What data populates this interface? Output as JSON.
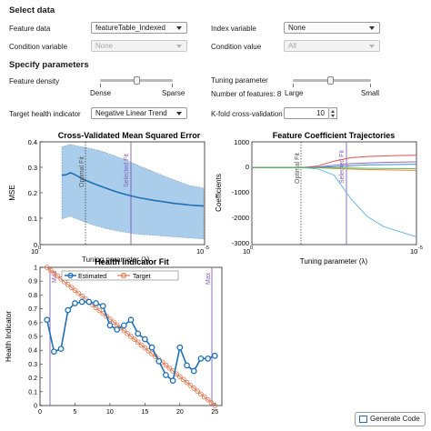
{
  "select_data": {
    "header": "Select data",
    "feature_data_label": "Feature data",
    "feature_data_value": "featureTable_Indexed",
    "index_variable_label": "Index variable",
    "index_variable_value": "None",
    "condition_variable_label": "Condition variable",
    "condition_variable_value": "None",
    "condition_value_label": "Condition value",
    "condition_value_value": "All"
  },
  "params": {
    "header": "Specify parameters",
    "feature_density_label": "Feature density",
    "density_left": "Dense",
    "density_right": "Sparse",
    "tuning_label": "Tuning parameter",
    "num_features_label": "Number of features: 8",
    "tuning_left": "Large",
    "tuning_right": "Small",
    "target_label": "Target health indicator",
    "target_value": "Negative Linear Trend",
    "kfold_label": "K-fold cross-validation",
    "kfold_value": "10"
  },
  "charts": {
    "mse": {
      "title": "Cross-Validated Mean Squared Error",
      "ylabel": "MSE",
      "optimal": "Optimal Fit",
      "selected": "Selected Fit",
      "xticks": [
        "10",
        "-5"
      ],
      "x0": "10",
      "x1": "10",
      "yticks": [
        "0.4",
        "0.3",
        "0.2",
        "0.1",
        "0"
      ]
    },
    "coef": {
      "title": "Feature Coefficient Trajectories",
      "ylabel": "Coefficients",
      "xlabel": "Tuning  parameter  (λ)",
      "optimal": "Optimal Fit",
      "selected": "Selected Fit",
      "yticks": [
        "1000",
        "0",
        "-1000",
        "-2000",
        "-3000"
      ],
      "x0": "10",
      "x1": "10",
      "x1exp": "-5"
    },
    "overlap_label": "Tuning  parameter  (λ)",
    "hi": {
      "title": "Health Indicator Fit",
      "ylabel": "Health Indicator",
      "legend_estimated": "Estimated",
      "legend_target": "Target",
      "max_left": "Max",
      "max_right": "Max",
      "yticks": [
        "1",
        "0.9",
        "0.8",
        "0.7",
        "0.6",
        "0.5",
        "0.4",
        "0.3",
        "0.2",
        "0.1",
        "0"
      ],
      "xticks": [
        "0",
        "5",
        "10",
        "15",
        "20",
        "25"
      ]
    }
  },
  "chart_data": [
    {
      "type": "line",
      "title": "Cross-Validated Mean Squared Error",
      "ylabel": "MSE",
      "ylim": [
        0,
        0.4
      ],
      "series": [
        {
          "name": "MSE",
          "x": [
            0.0,
            0.03,
            0.06,
            0.1,
            0.15,
            0.2,
            0.25,
            0.3,
            0.35,
            0.4,
            0.45,
            0.5,
            0.55,
            0.6,
            0.65,
            0.7,
            0.75,
            0.8,
            0.85,
            0.9,
            0.95,
            1.0
          ],
          "values": [
            0.27,
            0.272,
            0.28,
            0.27,
            0.255,
            0.243,
            0.232,
            0.222,
            0.212,
            0.203,
            0.195,
            0.188,
            0.182,
            0.177,
            0.172,
            0.168,
            0.164,
            0.16,
            0.157,
            0.154,
            0.152,
            0.15
          ]
        },
        {
          "name": "upper",
          "values": [
            0.38,
            0.385,
            0.39,
            0.385,
            0.38,
            0.375,
            0.368,
            0.36,
            0.35,
            0.34,
            0.33,
            0.318,
            0.305,
            0.295,
            0.283,
            0.272,
            0.26,
            0.25,
            0.24,
            0.23,
            0.225,
            0.22
          ]
        },
        {
          "name": "lower",
          "values": [
            0.1,
            0.105,
            0.11,
            0.102,
            0.09,
            0.08,
            0.072,
            0.064,
            0.058,
            0.052,
            0.048,
            0.043,
            0.04,
            0.038,
            0.036,
            0.034,
            0.032,
            0.03,
            0.028,
            0.026,
            0.024,
            0.022
          ]
        }
      ]
    },
    {
      "type": "line",
      "title": "Feature Coefficient Trajectories",
      "ylabel": "Coefficients",
      "xlabel": "Tuning  parameter  (λ)",
      "ylim": [
        -3000,
        1000
      ],
      "series": [
        {
          "name": "c1",
          "x": [
            0.0,
            0.3,
            0.4,
            0.5,
            0.6,
            0.7,
            0.8,
            0.9,
            1.0
          ],
          "values": [
            0,
            0,
            -50,
            -300,
            -1200,
            -1900,
            -2300,
            -2500,
            -2700
          ]
        },
        {
          "name": "c2",
          "x": [
            0.0,
            0.3,
            0.4,
            0.5,
            0.6,
            0.7,
            0.8,
            0.9,
            1.0
          ],
          "values": [
            0,
            0,
            60,
            250,
            380,
            430,
            450,
            470,
            480
          ]
        },
        {
          "name": "c3",
          "x": [
            0.0,
            0.3,
            0.4,
            0.5,
            0.6,
            0.7,
            0.8,
            0.9,
            1.0
          ],
          "values": [
            0,
            0,
            20,
            90,
            150,
            180,
            200,
            210,
            220
          ]
        },
        {
          "name": "c4",
          "x": [
            0.0,
            0.3,
            0.4,
            0.5,
            0.6,
            0.7,
            0.8,
            0.9,
            1.0
          ],
          "values": [
            0,
            0,
            -10,
            -40,
            -60,
            -80,
            -90,
            -100,
            -110
          ]
        },
        {
          "name": "c5",
          "x": [
            0.0,
            0.3,
            0.4,
            0.5,
            0.6,
            0.7,
            0.8,
            0.9,
            1.0
          ],
          "values": [
            0,
            0,
            10,
            30,
            70,
            100,
            110,
            120,
            130
          ]
        },
        {
          "name": "c6",
          "x": [
            0.0,
            0.3,
            0.4,
            0.5,
            0.6,
            0.7,
            0.8,
            0.9,
            1.0
          ],
          "values": [
            0,
            0,
            -5,
            -20,
            -20,
            -30,
            -35,
            -40,
            -45
          ]
        }
      ]
    },
    {
      "type": "line",
      "title": "Health Indicator Fit",
      "ylabel": "Health Indicator",
      "ylim": [
        0,
        1
      ],
      "xlim": [
        0,
        26
      ],
      "series": [
        {
          "name": "Estimated",
          "x": [
            1,
            2,
            3,
            4,
            5,
            6,
            7,
            8,
            9,
            10,
            11,
            12,
            13,
            14,
            15,
            16,
            17,
            18,
            19,
            20,
            21,
            22,
            23,
            24,
            25
          ],
          "values": [
            0.62,
            0.39,
            0.41,
            0.69,
            0.74,
            0.75,
            0.75,
            0.74,
            0.72,
            0.58,
            0.55,
            0.58,
            0.62,
            0.52,
            0.48,
            0.42,
            0.32,
            0.22,
            0.18,
            0.42,
            0.29,
            0.25,
            0.34,
            0.34,
            0.36
          ]
        },
        {
          "name": "Target",
          "x": [
            1,
            25
          ],
          "values": [
            1,
            0
          ]
        }
      ]
    }
  ]
}
